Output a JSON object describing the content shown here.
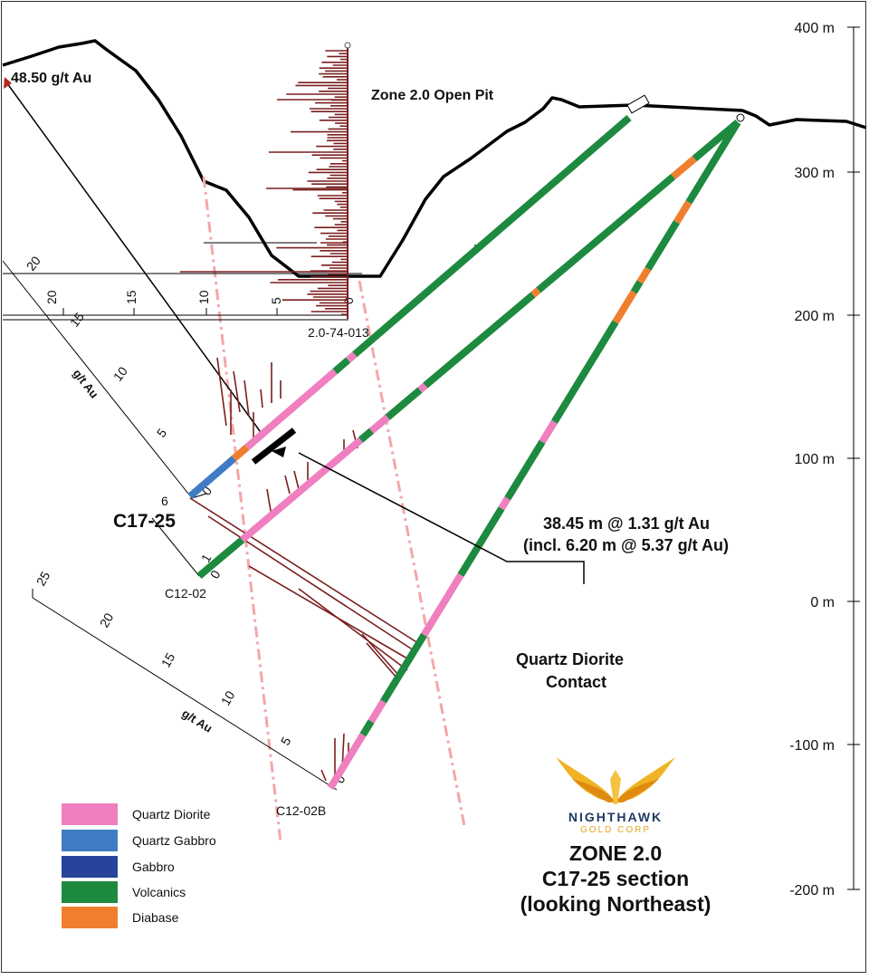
{
  "labels": {
    "open_pit": "Zone 2.0 Open Pit",
    "max_assay": "48.50 g/t Au",
    "intercept_1": "38.45 m @ 1.31 g/t Au",
    "intercept_2": "(incl. 6.20 m @ 5.37 g/t Au)",
    "contact_1": "Quartz Diorite",
    "contact_2": "Contact",
    "hole_main": "C17-25",
    "hole_c1202": "C12-02",
    "hole_c1202b": "C12-02B",
    "hole_pit": "2.0-74-013",
    "axis_unit": "g/t Au"
  },
  "elevation_axis": [
    "400 m",
    "300 m",
    "200 m",
    "100 m",
    "0 m",
    "-100 m",
    "-200 m"
  ],
  "scales": {
    "top": [
      "20",
      "15",
      "10",
      "5",
      "0"
    ],
    "c1725": [
      "20",
      "15",
      "10",
      "5",
      "0"
    ],
    "c1202": [
      "6",
      "1",
      "0"
    ],
    "c1202b": [
      "25",
      "20",
      "15",
      "10",
      "5",
      "0"
    ]
  },
  "legend": [
    {
      "label": "Quartz Diorite",
      "color": "#ef7fbf"
    },
    {
      "label": "Quartz Gabbro",
      "color": "#3f7cc4"
    },
    {
      "label": "Gabbro",
      "color": "#27439a"
    },
    {
      "label": "Volcanics",
      "color": "#1d8a3f"
    },
    {
      "label": "Diabase",
      "color": "#ef7f2f"
    }
  ],
  "logo": {
    "name": "NIGHTHAWK",
    "sub": "GOLD CORP"
  },
  "title": {
    "line1": "ZONE 2.0",
    "line2": "C17-25 section",
    "line3": "(looking Northeast)"
  },
  "colors": {
    "assay_bar": "#7a1f1f",
    "contact_line": "#f4a7a7",
    "topography": "#000000"
  }
}
